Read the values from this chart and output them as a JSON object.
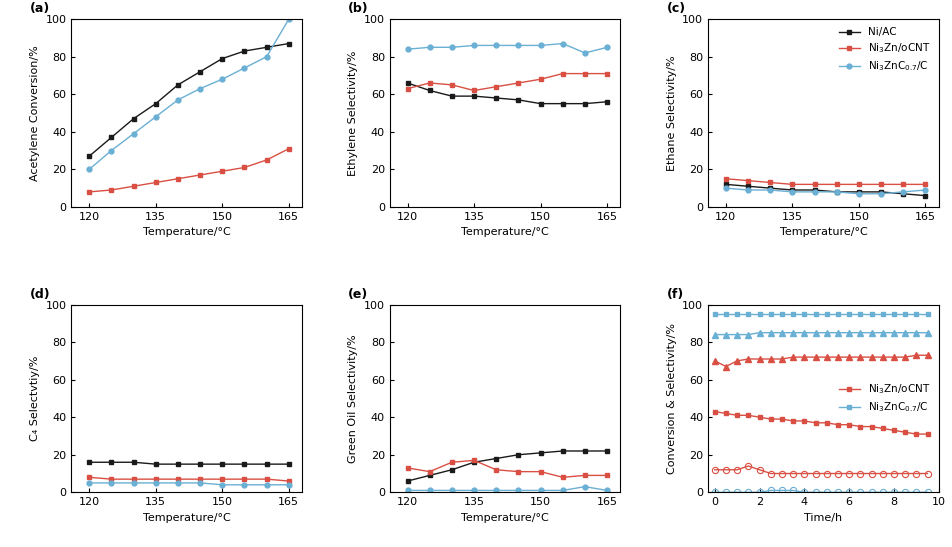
{
  "temp": [
    120,
    125,
    130,
    135,
    140,
    145,
    150,
    155,
    160,
    165
  ],
  "panel_a": {
    "label": "(a)",
    "ylabel": "Acetylene Conversion/%",
    "xlabel": "Temperature/°C",
    "NiAC": [
      27,
      37,
      47,
      55,
      65,
      72,
      79,
      83,
      85,
      87
    ],
    "Ni3Zn": [
      8,
      9,
      11,
      13,
      15,
      17,
      19,
      21,
      25,
      31
    ],
    "Ni3ZnC": [
      20,
      30,
      39,
      48,
      57,
      63,
      68,
      74,
      80,
      100
    ]
  },
  "panel_b": {
    "label": "(b)",
    "ylabel": "Ethylene Selectivity/%",
    "xlabel": "Temperature/°C",
    "NiAC": [
      66,
      62,
      59,
      59,
      58,
      57,
      55,
      55,
      55,
      56
    ],
    "Ni3Zn": [
      63,
      66,
      65,
      62,
      64,
      66,
      68,
      71,
      71,
      71
    ],
    "Ni3ZnC": [
      84,
      85,
      85,
      86,
      86,
      86,
      86,
      87,
      82,
      85
    ]
  },
  "panel_c": {
    "label": "(c)",
    "ylabel": "Ethane Selectivity/%",
    "xlabel": "Temperature/°C",
    "NiAC": [
      12,
      11,
      10,
      9,
      9,
      8,
      8,
      8,
      7,
      6
    ],
    "Ni3Zn": [
      15,
      14,
      13,
      12,
      12,
      12,
      12,
      12,
      12,
      12
    ],
    "Ni3ZnC": [
      10,
      9,
      9,
      8,
      8,
      8,
      7,
      7,
      8,
      9
    ]
  },
  "panel_d": {
    "label": "(d)",
    "ylabel": "C₄ Selectvtiy/%",
    "xlabel": "Temperature/°C",
    "NiAC": [
      16,
      16,
      16,
      15,
      15,
      15,
      15,
      15,
      15,
      15
    ],
    "Ni3Zn": [
      8,
      7,
      7,
      7,
      7,
      7,
      7,
      7,
      7,
      6
    ],
    "Ni3ZnC": [
      5,
      5,
      5,
      5,
      5,
      5,
      4,
      4,
      4,
      4
    ]
  },
  "panel_e": {
    "label": "(e)",
    "ylabel": "Green Oil Selectivity/%",
    "xlabel": "Temperature/°C",
    "NiAC": [
      6,
      9,
      12,
      16,
      18,
      20,
      21,
      22,
      22,
      22
    ],
    "Ni3Zn": [
      13,
      11,
      16,
      17,
      12,
      11,
      11,
      8,
      9,
      9
    ],
    "Ni3ZnC": [
      1,
      1,
      1,
      1,
      1,
      1,
      1,
      1,
      3,
      1
    ]
  },
  "panel_f": {
    "label": "(f)",
    "ylabel": "Conversion & Selectivity/%",
    "xlabel": "Time/h",
    "time": [
      0.0,
      0.5,
      1.0,
      1.5,
      2.0,
      2.5,
      3.0,
      3.5,
      4.0,
      4.5,
      5.0,
      5.5,
      6.0,
      6.5,
      7.0,
      7.5,
      8.0,
      8.5,
      9.0,
      9.5
    ],
    "Ni3ZnC_sel_sq": [
      95,
      95,
      95,
      95,
      95,
      95,
      95,
      95,
      95,
      95,
      95,
      95,
      95,
      95,
      95,
      95,
      95,
      95,
      95,
      95
    ],
    "Ni3ZnC_sel_tri": [
      84,
      84,
      84,
      84,
      85,
      85,
      85,
      85,
      85,
      85,
      85,
      85,
      85,
      85,
      85,
      85,
      85,
      85,
      85,
      85
    ],
    "Ni3Zn_sel_tri": [
      70,
      67,
      70,
      71,
      71,
      71,
      71,
      72,
      72,
      72,
      72,
      72,
      72,
      72,
      72,
      72,
      72,
      72,
      73,
      73
    ],
    "Ni3Zn_conv_sq": [
      43,
      42,
      41,
      41,
      40,
      39,
      39,
      38,
      38,
      37,
      37,
      36,
      36,
      35,
      35,
      34,
      33,
      32,
      31,
      31
    ],
    "Ni3Zn_conv_circ": [
      12,
      12,
      12,
      14,
      12,
      10,
      10,
      10,
      10,
      10,
      10,
      10,
      10,
      10,
      10,
      10,
      10,
      10,
      10,
      10
    ],
    "Ni3ZnC_conv_circ": [
      0,
      0,
      0,
      0,
      0,
      1,
      1,
      1,
      0,
      0,
      0,
      0,
      0,
      0,
      0,
      0,
      0,
      0,
      0,
      0
    ]
  },
  "colors": {
    "black": "#1a1a1a",
    "red": "#d94f43",
    "blue": "#6aafd4"
  },
  "legend_abc": {
    "NiAC": "Ni/AC",
    "Ni3Zn": "Ni$_3$Zn/oCNT",
    "Ni3ZnC": "Ni$_3$ZnC$_{0.7}$/C"
  },
  "legend_f": {
    "Ni3Zn": "Ni$_3$Zn/oCNT",
    "Ni3ZnC": "Ni$_3$ZnC$_{0.7}$/C"
  }
}
